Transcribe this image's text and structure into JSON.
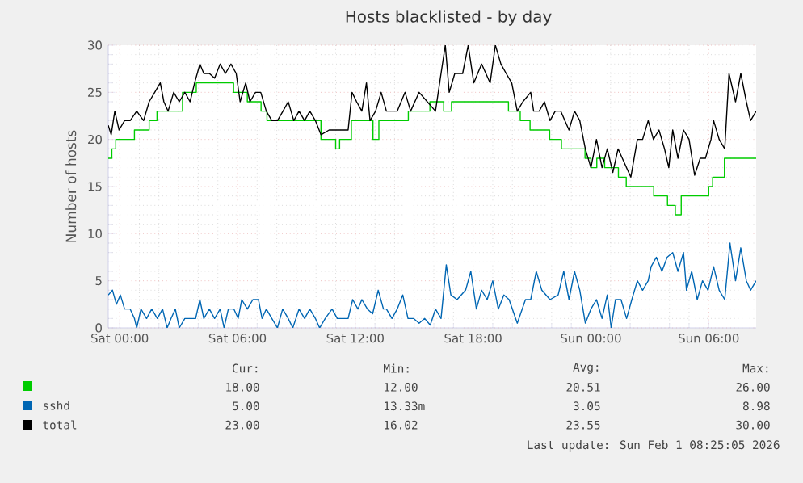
{
  "chart_data": {
    "type": "step",
    "title": "Hosts blacklisted - by day",
    "ylabel": "Number of hosts",
    "xlim": [
      "2026-01-30T23:25",
      "2026-02-01T08:25"
    ],
    "ylim": [
      0,
      30
    ],
    "xticks": [
      {
        "value": "2026-01-31T00:00",
        "label": "Sat 00:00"
      },
      {
        "value": "2026-01-31T06:00",
        "label": "Sat 06:00"
      },
      {
        "value": "2026-01-31T12:00",
        "label": "Sat 12:00"
      },
      {
        "value": "2026-01-31T18:00",
        "label": "Sat 18:00"
      },
      {
        "value": "2026-02-01T00:00",
        "label": "Sun 00:00"
      },
      {
        "value": "2026-02-01T06:00",
        "label": "Sun 06:00"
      }
    ],
    "yticks": [
      0,
      5,
      10,
      15,
      20,
      25,
      30
    ],
    "grid": true,
    "legend": "bottom",
    "series": [
      {
        "color": "#00cc00",
        "x": [
          "2026-01-30T23:25",
          "2026-01-30T23:36",
          "2026-01-30T23:48",
          "2026-01-31T00:45",
          "2026-01-31T01:30",
          "2026-01-31T01:54",
          "2026-01-31T03:12",
          "2026-01-31T03:54",
          "2026-01-31T05:48",
          "2026-01-31T06:30",
          "2026-01-31T07:12",
          "2026-01-31T07:30",
          "2026-01-31T10:15",
          "2026-01-31T11:00",
          "2026-01-31T11:12",
          "2026-01-31T11:48",
          "2026-01-31T12:54",
          "2026-01-31T13:12",
          "2026-01-31T14:42",
          "2026-01-31T15:48",
          "2026-01-31T16:30",
          "2026-01-31T16:54",
          "2026-01-31T19:48",
          "2026-01-31T20:24",
          "2026-01-31T20:54",
          "2026-01-31T21:54",
          "2026-01-31T22:30",
          "2026-01-31T23:42",
          "2026-02-01T00:00",
          "2026-02-01T00:18",
          "2026-02-01T00:42",
          "2026-02-01T01:24",
          "2026-02-01T01:48",
          "2026-02-01T03:12",
          "2026-02-01T03:54",
          "2026-02-01T04:18",
          "2026-02-01T04:36",
          "2026-02-01T06:00",
          "2026-02-01T06:12",
          "2026-02-01T06:48",
          "2026-02-01T08:25"
        ],
        "values": [
          18,
          19,
          20,
          21,
          22,
          23,
          25,
          26,
          25,
          24,
          23,
          22,
          20,
          19,
          20,
          22,
          20,
          22,
          23,
          24,
          23,
          24,
          23,
          22,
          21,
          20,
          19,
          18,
          17,
          18,
          17,
          16,
          15,
          14,
          13,
          12,
          14,
          15,
          16,
          18,
          18
        ]
      },
      {
        "name": "sshd",
        "type": "line",
        "color": "#0066b3",
        "x": [
          "2026-01-30T23:25",
          "2026-01-30T23:38",
          "2026-01-30T23:50",
          "2026-01-31T00:02",
          "2026-01-31T00:15",
          "2026-01-31T00:32",
          "2026-01-31T00:45",
          "2026-01-31T00:52",
          "2026-01-31T01:05",
          "2026-01-31T01:22",
          "2026-01-31T01:38",
          "2026-01-31T01:55",
          "2026-01-31T02:11",
          "2026-01-31T02:25",
          "2026-01-31T02:37",
          "2026-01-31T02:50",
          "2026-01-31T03:02",
          "2026-01-31T03:19",
          "2026-01-31T03:35",
          "2026-01-31T03:52",
          "2026-01-31T04:05",
          "2026-01-31T04:17",
          "2026-01-31T04:34",
          "2026-01-31T04:50",
          "2026-01-31T05:07",
          "2026-01-31T05:19",
          "2026-01-31T05:32",
          "2026-01-31T05:49",
          "2026-01-31T06:02",
          "2026-01-31T06:13",
          "2026-01-31T06:30",
          "2026-01-31T06:47",
          "2026-01-31T07:04",
          "2026-01-31T07:15",
          "2026-01-31T07:28",
          "2026-01-31T07:45",
          "2026-01-31T08:02",
          "2026-01-31T08:18",
          "2026-01-31T08:35",
          "2026-01-31T08:49",
          "2026-01-31T09:08",
          "2026-01-31T09:25",
          "2026-01-31T09:41",
          "2026-01-31T09:58",
          "2026-01-31T10:11",
          "2026-01-31T10:28",
          "2026-01-31T10:49",
          "2026-01-31T11:05",
          "2026-01-31T11:22",
          "2026-01-31T11:38",
          "2026-01-31T11:52",
          "2026-01-31T12:08",
          "2026-01-31T12:20",
          "2026-01-31T12:37",
          "2026-01-31T12:53",
          "2026-01-31T13:10",
          "2026-01-31T13:26",
          "2026-01-31T13:35",
          "2026-01-31T13:52",
          "2026-01-31T14:08",
          "2026-01-31T14:25",
          "2026-01-31T14:41",
          "2026-01-31T14:58",
          "2026-01-31T15:15",
          "2026-01-31T15:32",
          "2026-01-31T15:49",
          "2026-01-31T16:05",
          "2026-01-31T16:22",
          "2026-01-31T16:38",
          "2026-01-31T16:52",
          "2026-01-31T17:11",
          "2026-01-31T17:37",
          "2026-01-31T17:53",
          "2026-01-31T18:10",
          "2026-01-31T18:26",
          "2026-01-31T18:43",
          "2026-01-31T19:00",
          "2026-01-31T19:17",
          "2026-01-31T19:34",
          "2026-01-31T19:50",
          "2026-01-31T20:15",
          "2026-01-31T20:40",
          "2026-01-31T20:56",
          "2026-01-31T21:13",
          "2026-01-31T21:30",
          "2026-01-31T21:55",
          "2026-01-31T22:20",
          "2026-01-31T22:37",
          "2026-01-31T22:53",
          "2026-01-31T23:10",
          "2026-01-31T23:26",
          "2026-01-31T23:43",
          "2026-02-01T00:00",
          "2026-02-01T00:17",
          "2026-02-01T00:34",
          "2026-02-01T00:50",
          "2026-02-01T01:02",
          "2026-02-01T01:15",
          "2026-02-01T01:32",
          "2026-02-01T01:49",
          "2026-02-01T02:05",
          "2026-02-01T02:22",
          "2026-02-01T02:38",
          "2026-02-01T02:55",
          "2026-02-01T03:04",
          "2026-02-01T03:20",
          "2026-02-01T03:37",
          "2026-02-01T03:53",
          "2026-02-01T04:10",
          "2026-02-01T04:26",
          "2026-02-01T04:43",
          "2026-02-01T04:52",
          "2026-02-01T05:08",
          "2026-02-01T05:25",
          "2026-02-01T05:41",
          "2026-02-01T05:58",
          "2026-02-01T06:15",
          "2026-02-01T06:32",
          "2026-02-01T06:49",
          "2026-02-01T07:05",
          "2026-02-01T07:22",
          "2026-02-01T07:38",
          "2026-02-01T07:55",
          "2026-02-01T08:08",
          "2026-02-01T08:25"
        ],
        "values": [
          3.5,
          4,
          2.5,
          3.5,
          2,
          2,
          1,
          0,
          2,
          1,
          2,
          1,
          2,
          0,
          1,
          2,
          0,
          1,
          1,
          1,
          3,
          1,
          2,
          1,
          2,
          0,
          2,
          2,
          1,
          3,
          2,
          3,
          3,
          1,
          2,
          1,
          0,
          2,
          1,
          0,
          2,
          1,
          2,
          1,
          0,
          1,
          2,
          1,
          1,
          1,
          3,
          2,
          3,
          2,
          1.5,
          4,
          2,
          2,
          1,
          2,
          3.5,
          1,
          1,
          0.5,
          1,
          0.3,
          2,
          1,
          6.7,
          3.5,
          3,
          4,
          6,
          2,
          4,
          3,
          5,
          2,
          3.5,
          3,
          0.5,
          3,
          3,
          6,
          4,
          3,
          3.5,
          6,
          3,
          6,
          4,
          0.5,
          2,
          3,
          1,
          3.5,
          0,
          3,
          3,
          1,
          3,
          5,
          4,
          5,
          6.5,
          7.5,
          6,
          7.5,
          8,
          6,
          8,
          4,
          6,
          3,
          5,
          4,
          6.5,
          4,
          3,
          9,
          5,
          8.5,
          5,
          4,
          5
        ]
      },
      {
        "name": "total",
        "type": "line",
        "color": "#000000",
        "x": [
          "2026-01-30T23:25",
          "2026-01-30T23:34",
          "2026-01-30T23:45",
          "2026-01-30T23:58",
          "2026-01-31T00:15",
          "2026-01-31T00:32",
          "2026-01-31T00:52",
          "2026-01-31T01:13",
          "2026-01-31T01:30",
          "2026-01-31T01:47",
          "2026-01-31T02:04",
          "2026-01-31T02:15",
          "2026-01-31T02:28",
          "2026-01-31T02:45",
          "2026-01-31T03:02",
          "2026-01-31T03:19",
          "2026-01-31T03:35",
          "2026-01-31T03:49",
          "2026-01-31T04:05",
          "2026-01-31T04:17",
          "2026-01-31T04:34",
          "2026-01-31T04:50",
          "2026-01-31T05:07",
          "2026-01-31T05:23",
          "2026-01-31T05:40",
          "2026-01-31T05:56",
          "2026-01-31T06:08",
          "2026-01-31T06:25",
          "2026-01-31T06:38",
          "2026-01-31T06:55",
          "2026-01-31T07:11",
          "2026-01-31T07:28",
          "2026-01-31T07:45",
          "2026-01-31T08:02",
          "2026-01-31T08:19",
          "2026-01-31T08:35",
          "2026-01-31T08:52",
          "2026-01-31T09:08",
          "2026-01-31T09:25",
          "2026-01-31T09:41",
          "2026-01-31T09:58",
          "2026-01-31T10:15",
          "2026-01-31T10:40",
          "2026-01-31T10:56",
          "2026-01-31T11:22",
          "2026-01-31T11:38",
          "2026-01-31T11:50",
          "2026-01-31T12:04",
          "2026-01-31T12:20",
          "2026-01-31T12:34",
          "2026-01-31T12:45",
          "2026-01-31T13:02",
          "2026-01-31T13:19",
          "2026-01-31T13:35",
          "2026-01-31T14:08",
          "2026-01-31T14:32",
          "2026-01-31T14:49",
          "2026-01-31T15:15",
          "2026-01-31T15:40",
          "2026-01-31T16:05",
          "2026-01-31T16:22",
          "2026-01-31T16:35",
          "2026-01-31T16:47",
          "2026-01-31T17:04",
          "2026-01-31T17:28",
          "2026-01-31T17:45",
          "2026-01-31T18:02",
          "2026-01-31T18:26",
          "2026-01-31T18:52",
          "2026-01-31T19:08",
          "2026-01-31T19:25",
          "2026-01-31T19:41",
          "2026-01-31T19:58",
          "2026-01-31T20:15",
          "2026-01-31T20:32",
          "2026-01-31T20:56",
          "2026-01-31T21:05",
          "2026-01-31T21:22",
          "2026-01-31T21:38",
          "2026-01-31T21:55",
          "2026-01-31T22:11",
          "2026-01-31T22:28",
          "2026-01-31T22:53",
          "2026-01-31T23:10",
          "2026-01-31T23:26",
          "2026-01-31T23:43",
          "2026-02-01T00:00",
          "2026-02-01T00:17",
          "2026-02-01T00:34",
          "2026-02-01T00:50",
          "2026-02-01T01:07",
          "2026-02-01T01:23",
          "2026-02-01T01:49",
          "2026-02-01T02:02",
          "2026-02-01T02:22",
          "2026-02-01T02:38",
          "2026-02-01T02:55",
          "2026-02-01T03:11",
          "2026-02-01T03:28",
          "2026-02-01T03:45",
          "2026-02-01T03:58",
          "2026-02-01T04:10",
          "2026-02-01T04:26",
          "2026-02-01T04:43",
          "2026-02-01T05:00",
          "2026-02-01T05:17",
          "2026-02-01T05:34",
          "2026-02-01T05:50",
          "2026-02-01T06:07",
          "2026-02-01T06:15",
          "2026-02-01T06:32",
          "2026-02-01T06:49",
          "2026-02-01T07:02",
          "2026-02-01T07:22",
          "2026-02-01T07:38",
          "2026-02-01T07:55",
          "2026-02-01T08:08",
          "2026-02-01T08:25"
        ],
        "values": [
          21.5,
          20.5,
          23,
          21,
          22,
          22,
          23,
          22,
          24,
          25,
          26,
          24,
          23,
          25,
          24,
          25,
          24,
          26,
          28,
          27,
          27,
          26.5,
          28,
          27,
          28,
          27,
          24,
          26,
          24,
          25,
          25,
          23,
          22,
          22,
          23,
          24,
          22,
          23,
          22,
          23,
          22,
          20.5,
          21,
          21,
          21,
          21,
          25,
          24,
          23,
          26,
          22,
          23,
          25,
          23,
          23,
          25,
          23,
          25,
          24,
          23,
          27,
          30,
          25,
          27,
          27,
          30,
          26,
          28,
          26,
          30,
          28,
          27,
          26,
          23,
          24,
          25,
          23,
          23,
          24,
          22,
          23,
          23,
          21,
          23,
          22,
          19,
          17,
          20,
          17,
          19,
          16.5,
          19,
          17,
          16,
          20,
          20,
          22,
          20,
          21,
          19,
          17,
          21,
          18,
          21,
          20,
          16.2,
          18,
          18,
          20,
          22,
          20,
          19,
          27,
          24,
          27,
          24,
          22,
          23
        ]
      }
    ],
    "annotations": [
      "Cur:",
      "Min:",
      "Avg:",
      "Max:",
      "18.00",
      "12.00",
      "20.51",
      "26.00",
      "5.00",
      "13.33m",
      "3.05",
      "8.98",
      "23.00",
      "16.02",
      "23.55",
      "30.00",
      "Last update: Sun Feb  1 08:25:05 2026"
    ]
  }
}
